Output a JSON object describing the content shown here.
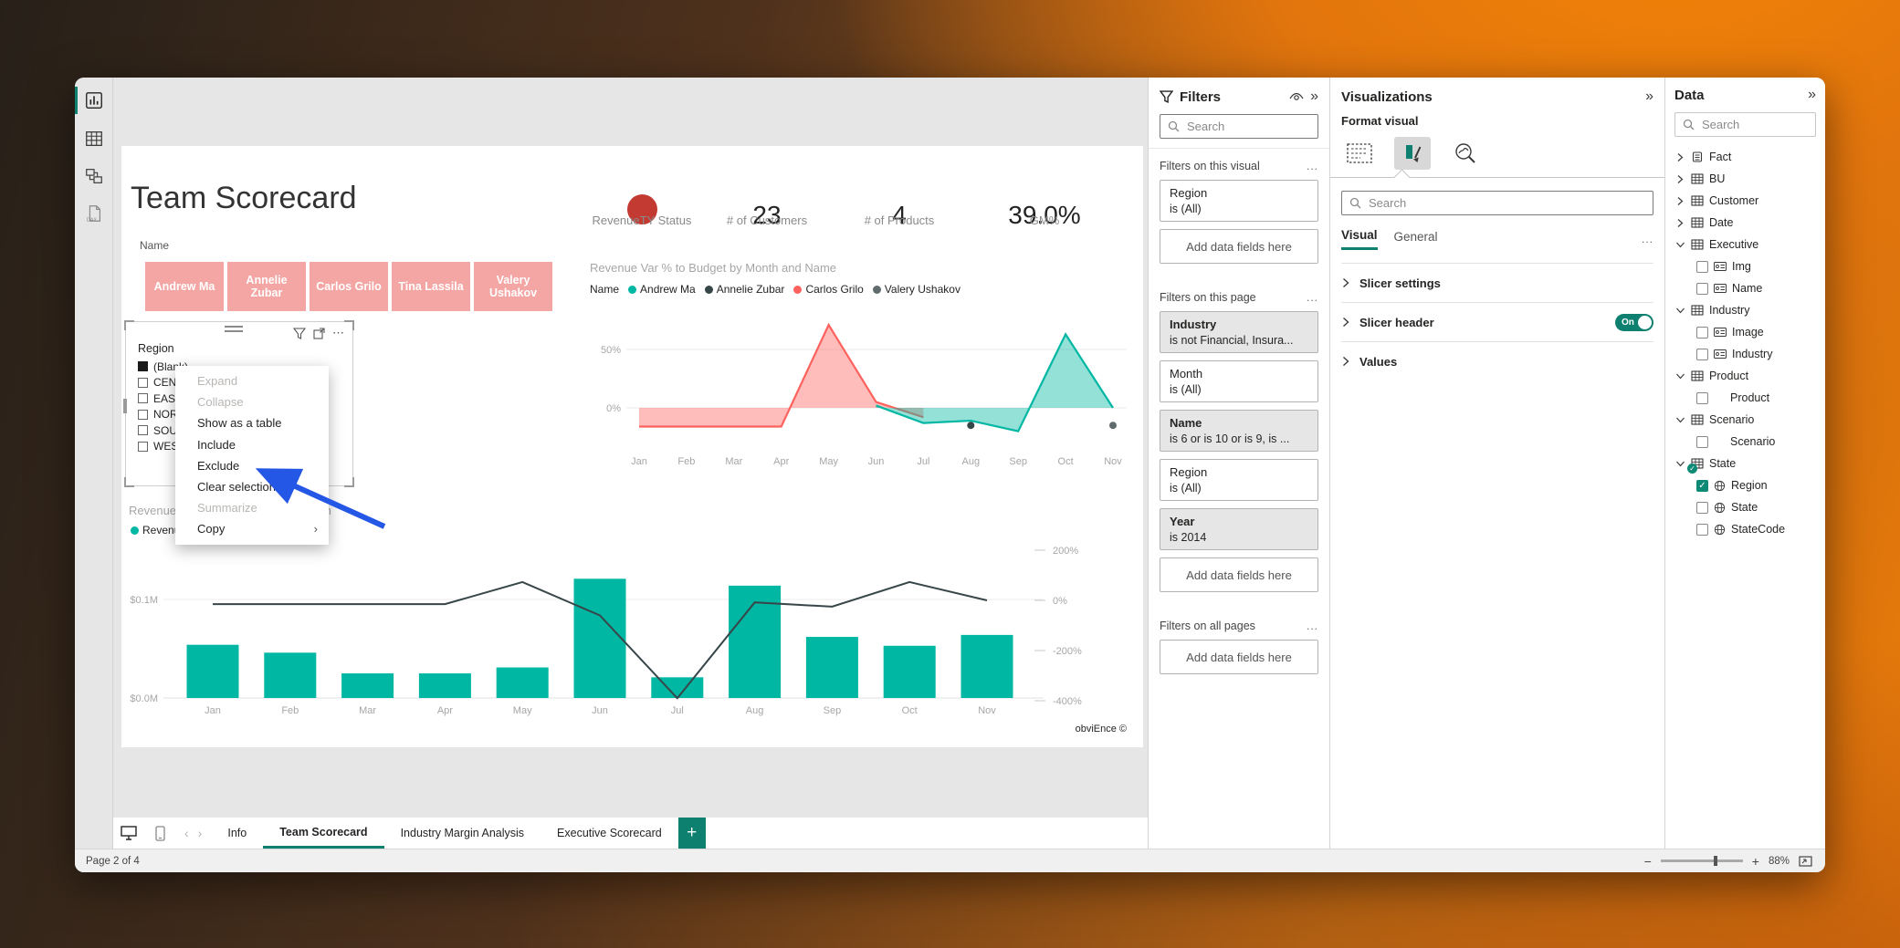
{
  "canvas": {
    "title": "Team Scorecard",
    "kpis": [
      {
        "type": "status-circle",
        "label": "RevenueTY Status",
        "color": "#c23a32"
      },
      {
        "type": "number",
        "value": "23",
        "label": "# of Customers"
      },
      {
        "type": "number",
        "value": "4",
        "label": "# of Products"
      },
      {
        "type": "number",
        "value": "39.0%",
        "label": "GM%"
      }
    ],
    "name_slicer": {
      "label": "Name",
      "button_color": "#f3a6a4",
      "buttons": [
        "Andrew Ma",
        "Annelie Zubar",
        "Carlos Grilo",
        "Tina Lassila",
        "Valery Ushakov"
      ]
    },
    "region_slicer": {
      "title": "Region",
      "items": [
        {
          "label": "(Blank)",
          "checked": true
        },
        {
          "label": "CEN",
          "checked": false
        },
        {
          "label": "EAST",
          "checked": false
        },
        {
          "label": "NOR",
          "checked": false
        },
        {
          "label": "SOU",
          "checked": false
        },
        {
          "label": "WES",
          "checked": false
        }
      ]
    },
    "context_menu": {
      "items": [
        {
          "label": "Expand",
          "disabled": true,
          "submenu": false
        },
        {
          "label": "Collapse",
          "disabled": true,
          "submenu": false
        },
        {
          "label": "Show as a table",
          "disabled": false,
          "submenu": false
        },
        {
          "label": "Include",
          "disabled": false,
          "submenu": false
        },
        {
          "label": "Exclude",
          "disabled": false,
          "submenu": false
        },
        {
          "label": "Clear selections",
          "disabled": false,
          "submenu": false
        },
        {
          "label": "Summarize",
          "disabled": true,
          "submenu": false
        },
        {
          "label": "Copy",
          "disabled": false,
          "submenu": true
        }
      ]
    },
    "credit": "obviEnce ©"
  },
  "chart_data": [
    {
      "type": "area",
      "title": "Revenue Var % to Budget by Month and Name",
      "legend_label": "Name",
      "legend": [
        {
          "name": "Andrew Ma",
          "color": "#00b7a3"
        },
        {
          "name": "Annelie Zubar",
          "color": "#374649"
        },
        {
          "name": "Carlos Grilo",
          "color": "#fd625e"
        },
        {
          "name": "Valery Ushakov",
          "color": "#5f6b6d"
        }
      ],
      "x": [
        "Jan",
        "Feb",
        "Mar",
        "Apr",
        "May",
        "Jun",
        "Jul",
        "Aug",
        "Sep",
        "Oct",
        "Nov"
      ],
      "y_ticks": [
        "50%",
        "0%"
      ],
      "y_tick_values": [
        50,
        0
      ],
      "ylim": [
        -30,
        80
      ],
      "grid": true,
      "legend_position": "top",
      "series": [
        {
          "name": "Carlos Grilo",
          "color": "#fd625e",
          "values_pct": [
            -16,
            -16,
            -16,
            -16,
            71,
            5,
            -8,
            null,
            null,
            null,
            null
          ]
        },
        {
          "name": "Andrew Ma",
          "color": "#00b7a3",
          "values_pct": [
            null,
            null,
            null,
            null,
            null,
            2,
            -13,
            -11,
            -20,
            63,
            0
          ]
        }
      ],
      "points": [
        {
          "name": "Annelie Zubar",
          "month": "Aug",
          "value_pct": -15,
          "color": "#374649"
        },
        {
          "name": "Valery Ushakov",
          "month": "Nov",
          "value_pct": -15,
          "color": "#5f6b6d"
        }
      ]
    },
    {
      "type": "combo-bar-line",
      "title_visible_left": "RevenueT",
      "title_visible_right": "th",
      "legend_visible": [
        {
          "name": "RevenueT",
          "color": "#00b7a3"
        }
      ],
      "x": [
        "Jan",
        "Feb",
        "Mar",
        "Apr",
        "May",
        "Jun",
        "Jul",
        "Aug",
        "Sep",
        "Oct",
        "Nov"
      ],
      "bars": {
        "color": "#00b7a3",
        "values_musd": [
          0.054,
          0.046,
          0.025,
          0.025,
          0.031,
          0.121,
          0.021,
          0.114,
          0.062,
          0.053,
          0.064
        ]
      },
      "line": {
        "color": "#374649",
        "values_pct": [
          -15,
          -15,
          -15,
          -15,
          73,
          -60,
          -390,
          -8,
          -25,
          73,
          0
        ]
      },
      "y_left_ticks": [
        "$0.1M",
        "$0.0M"
      ],
      "y_left_tick_values_musd": [
        0.1,
        0.0
      ],
      "y_right_ticks": [
        "200%",
        "0%",
        "-200%",
        "-400%"
      ],
      "y_right_tick_values_pct": [
        200,
        0,
        -200,
        -400
      ],
      "grid": true
    }
  ],
  "filters_pane": {
    "title": "Filters",
    "search_placeholder": "Search",
    "more": "...",
    "sections": [
      {
        "heading": "Filters on this visual",
        "cards": [
          {
            "field": "Region",
            "condition": "is (All)",
            "shaded": false
          }
        ],
        "add_placeholder": "Add data fields here"
      },
      {
        "heading": "Filters on this page",
        "cards": [
          {
            "field": "Industry",
            "condition": "is not Financial, Insura...",
            "shaded": true
          },
          {
            "field": "Month",
            "condition": "is (All)",
            "shaded": false
          },
          {
            "field": "Name",
            "condition": "is 6 or is 10 or is 9, is ...",
            "shaded": true
          },
          {
            "field": "Region",
            "condition": "is (All)",
            "shaded": false
          },
          {
            "field": "Year",
            "condition": "is 2014",
            "shaded": true
          }
        ],
        "add_placeholder": "Add data fields here"
      },
      {
        "heading": "Filters on all pages",
        "cards": [],
        "add_placeholder": "Add data fields here"
      }
    ]
  },
  "visualizations_pane": {
    "title": "Visualizations",
    "subtitle": "Format visual",
    "search_placeholder": "Search",
    "more": "...",
    "tabs": [
      {
        "label": "Visual",
        "active": true
      },
      {
        "label": "General",
        "active": false
      }
    ],
    "sections": [
      {
        "label": "Slicer settings",
        "toggle": null
      },
      {
        "label": "Slicer header",
        "toggle": "On"
      },
      {
        "label": "Values",
        "toggle": null
      }
    ]
  },
  "data_pane": {
    "title": "Data",
    "search_placeholder": "Search",
    "tables": [
      {
        "name": "Fact",
        "expanded": false,
        "icon": "fact-table",
        "badge": false,
        "fields": []
      },
      {
        "name": "BU",
        "expanded": false,
        "icon": "table",
        "badge": false,
        "fields": []
      },
      {
        "name": "Customer",
        "expanded": false,
        "icon": "table",
        "badge": false,
        "fields": []
      },
      {
        "name": "Date",
        "expanded": false,
        "icon": "table",
        "badge": false,
        "fields": []
      },
      {
        "name": "Executive",
        "expanded": true,
        "icon": "table",
        "badge": false,
        "fields": [
          {
            "name": "Img",
            "icon": "card",
            "checked": false
          },
          {
            "name": "Name",
            "icon": "card",
            "checked": false
          }
        ]
      },
      {
        "name": "Industry",
        "expanded": true,
        "icon": "table",
        "badge": false,
        "fields": [
          {
            "name": "Image",
            "icon": "card",
            "checked": false
          },
          {
            "name": "Industry",
            "icon": "card",
            "checked": false
          }
        ]
      },
      {
        "name": "Product",
        "expanded": true,
        "icon": "table",
        "badge": false,
        "fields": [
          {
            "name": "Product",
            "icon": "none",
            "checked": false
          }
        ]
      },
      {
        "name": "Scenario",
        "expanded": true,
        "icon": "table",
        "badge": false,
        "fields": [
          {
            "name": "Scenario",
            "icon": "none",
            "checked": false
          }
        ]
      },
      {
        "name": "State",
        "expanded": true,
        "icon": "table",
        "badge": true,
        "fields": [
          {
            "name": "Region",
            "icon": "globe",
            "checked": true
          },
          {
            "name": "State",
            "icon": "globe",
            "checked": false
          },
          {
            "name": "StateCode",
            "icon": "globe",
            "checked": false
          }
        ]
      }
    ]
  },
  "pages_bar": {
    "tabs": [
      {
        "label": "Info",
        "active": false
      },
      {
        "label": "Team Scorecard",
        "active": true
      },
      {
        "label": "Industry Margin Analysis",
        "active": false
      },
      {
        "label": "Executive Scorecard",
        "active": false
      }
    ],
    "new_page_label": "+"
  },
  "status_bar": {
    "page_indicator": "Page 2 of 4",
    "zoom_level": "88%"
  }
}
